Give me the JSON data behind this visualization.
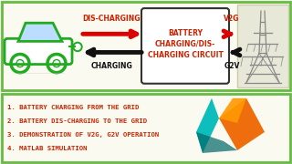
{
  "bg_color": "#f0f0e8",
  "border_color": "#66bb44",
  "arrow_discharge_color": "#dd0000",
  "arrow_charge_color": "#111111",
  "arrow_v2g_color": "#dd0000",
  "arrow_g2v_color": "#111111",
  "dis_charging_text": "DIS-CHARGING",
  "charging_text": "CHARGING",
  "v2g_text": "V2G",
  "g2v_text": "G2V",
  "battery_box_text": "BATTERY\nCHARGING/DIS-\nCHARGING CIRCUIT",
  "list_items": [
    "1. BATTERY CHARGING FROM THE GRID",
    "2. BATTERY DIS-CHARGING TO THE GRID",
    "3. DEMONSTRATION OF V2G, G2V OPERATION",
    "4. MATLAB SIMULATION"
  ],
  "text_color_red": "#cc2200",
  "text_color_black": "#111111",
  "car_color": "#22aa22",
  "car_window_color": "#bbddff",
  "tower_color": "#888888",
  "tower_bg": "#e8e8d8"
}
